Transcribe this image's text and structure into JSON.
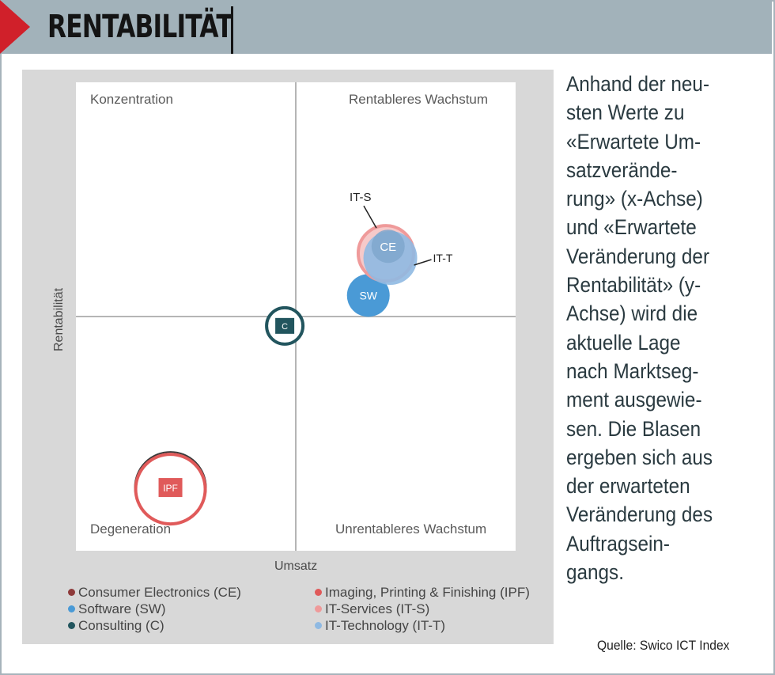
{
  "header": {
    "title": "RENTABILITÄT",
    "accent_color": "#d0202a",
    "banner_color": "#a2b2ba"
  },
  "body_text": {
    "lines": [
      "Anhand der neu-",
      "sten Werte zu",
      "«Erwartete Um-",
      "satzverände-",
      "rung» (x-Achse)",
      "und «Erwartete",
      "Veränderung der",
      "Rentabilität» (y-",
      "Achse) wird die",
      "aktuelle Lage",
      "nach Marktseg-",
      "ment ausgewie-",
      "sen. Die Blasen",
      "ergeben sich aus",
      "der erwarteten",
      "Veränderung des",
      "Auftragsein-",
      "gangs."
    ]
  },
  "source": "Quelle: Swico ICT Index",
  "chart_data": {
    "type": "bubble",
    "xlabel": "Umsatz",
    "ylabel": "Rentabilität",
    "quadrants": {
      "top_left": "Konzentration",
      "top_right": "Rentableres Wachstum",
      "bottom_left": "Degeneration",
      "bottom_right": "Unrentableres Wachstum"
    },
    "axes_cross_at_center": true,
    "grid": false,
    "legend_position": "bottom",
    "series": [
      {
        "name": "Consumer Electronics (CE)",
        "label": "CE",
        "color": "#8e3a3a",
        "x": 0.42,
        "y": 0.3,
        "size": 0.21
      },
      {
        "name": "Imaging, Printing & Finishing (IPF)",
        "label": "IPF",
        "color": "#e05a5a",
        "x": -0.57,
        "y": -0.73,
        "size": 0.46
      },
      {
        "name": "Software (SW)",
        "label": "SW",
        "color": "#4a9ad6",
        "x": 0.33,
        "y": 0.09,
        "size": 0.27
      },
      {
        "name": "IT-Services (IT-S)",
        "label": "IT-S",
        "color": "#ef9a9a",
        "x": 0.41,
        "y": 0.27,
        "size": 0.35
      },
      {
        "name": "Consulting (C)",
        "label": "C",
        "color": "#22555e",
        "x": -0.05,
        "y": -0.04,
        "size": 0.23
      },
      {
        "name": "IT-Technology (IT-T)",
        "label": "IT-T",
        "color": "#8fb9e2",
        "x": 0.43,
        "y": 0.25,
        "size": 0.34
      }
    ]
  }
}
